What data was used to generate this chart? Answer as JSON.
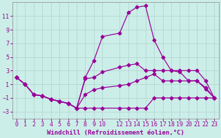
{
  "xlabel": "Windchill (Refroidissement éolien,°C)",
  "background_color": "#cceee8",
  "grid_color": "#b0d0cc",
  "line_color": "#990099",
  "xticks": [
    0,
    1,
    2,
    3,
    4,
    5,
    6,
    7,
    8,
    9,
    10,
    12,
    13,
    14,
    15,
    16,
    17,
    18,
    19,
    20,
    21,
    22,
    23
  ],
  "yticks": [
    -3,
    -1,
    1,
    3,
    5,
    7,
    9,
    11
  ],
  "ylim": [
    -4.0,
    13.0
  ],
  "xlim": [
    -0.5,
    23.5
  ],
  "line1_x": [
    0,
    1,
    2,
    3,
    4,
    5,
    6,
    7,
    8,
    9,
    10,
    12,
    13,
    14,
    15,
    16,
    17,
    18,
    19,
    20,
    21,
    22,
    23
  ],
  "line1_y": [
    2.0,
    1.0,
    -0.5,
    -0.7,
    -1.2,
    -1.5,
    -1.8,
    -2.5,
    -2.5,
    -2.5,
    -2.5,
    -2.5,
    -2.5,
    -2.5,
    -2.5,
    -1.0,
    -1.0,
    -1.0,
    -1.0,
    -1.0,
    -1.0,
    -1.0,
    -1.0
  ],
  "line2_x": [
    0,
    1,
    2,
    3,
    4,
    5,
    6,
    7,
    8,
    9,
    10,
    12,
    13,
    14,
    15,
    16,
    17,
    18,
    19,
    20,
    21,
    22,
    23
  ],
  "line2_y": [
    2.0,
    1.0,
    -0.5,
    -0.7,
    -1.2,
    -1.5,
    -1.8,
    -2.5,
    -0.5,
    0.2,
    0.5,
    0.8,
    1.0,
    1.5,
    2.0,
    2.5,
    1.5,
    1.5,
    1.5,
    1.5,
    1.5,
    0.5,
    -1.0
  ],
  "line3_x": [
    0,
    1,
    2,
    3,
    4,
    5,
    6,
    7,
    8,
    9,
    10,
    12,
    13,
    14,
    15,
    16,
    17,
    18,
    19,
    20,
    21,
    22,
    23
  ],
  "line3_y": [
    2.0,
    1.0,
    -0.5,
    -0.7,
    -1.2,
    -1.5,
    -1.8,
    -2.5,
    1.8,
    2.0,
    2.8,
    3.5,
    3.8,
    4.0,
    3.0,
    3.0,
    3.0,
    3.0,
    3.0,
    3.0,
    3.0,
    1.5,
    -1.0
  ],
  "line4_x": [
    0,
    1,
    2,
    3,
    4,
    5,
    6,
    7,
    8,
    9,
    10,
    12,
    13,
    14,
    15,
    16,
    17,
    18,
    19,
    20,
    21,
    22,
    23
  ],
  "line4_y": [
    2.0,
    1.0,
    -0.5,
    -0.7,
    -1.2,
    -1.5,
    -1.8,
    -2.5,
    2.0,
    4.5,
    8.0,
    8.5,
    11.5,
    12.3,
    12.5,
    7.5,
    5.0,
    3.0,
    2.8,
    1.5,
    1.5,
    0.3,
    -1.0
  ],
  "fontsize": 6.5,
  "tickfontsize": 6.0,
  "marker": "D",
  "markersize": 2.5,
  "linewidth": 0.9
}
